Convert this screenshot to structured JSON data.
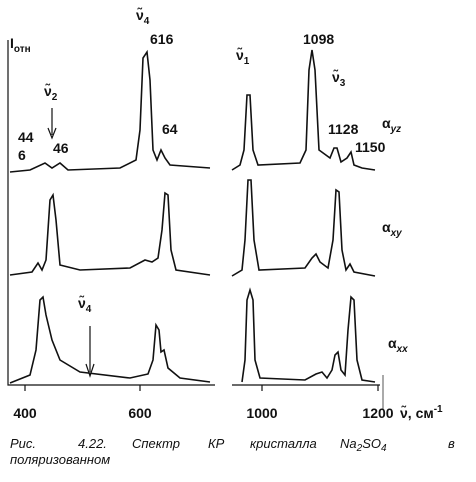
{
  "figure": {
    "y_label": {
      "main": "I",
      "sub": "отн"
    },
    "x_ticks": [
      "400",
      "600",
      "1000",
      "1200"
    ],
    "x_label": {
      "symbol": "ν̃",
      "unit": ", см",
      "exp": "-1"
    },
    "modes": [
      {
        "symbol": "ν̃",
        "sub": "4"
      },
      {
        "symbol": "ν̃",
        "sub": "2"
      },
      {
        "symbol": "ν̃",
        "sub": "1"
      },
      {
        "symbol": "ν̃",
        "sub": "3"
      },
      {
        "symbol": "ν̃",
        "sub": "4"
      }
    ],
    "peak_labels": [
      "616",
      "1098",
      "44",
      "6",
      "46",
      "64",
      "1128",
      "1150"
    ],
    "traces": [
      {
        "symbol": "α",
        "sub": "yz"
      },
      {
        "symbol": "α",
        "sub": "xy"
      },
      {
        "symbol": "α",
        "sub": "xx"
      }
    ],
    "caption": {
      "label": "Рис.",
      "number": "4.22.",
      "words": [
        "Спектр",
        "КР",
        "кристалла"
      ],
      "formula": [
        "Na",
        "2",
        "SO",
        "4"
      ],
      "tail": [
        "в",
        "поляризованном"
      ]
    }
  }
}
